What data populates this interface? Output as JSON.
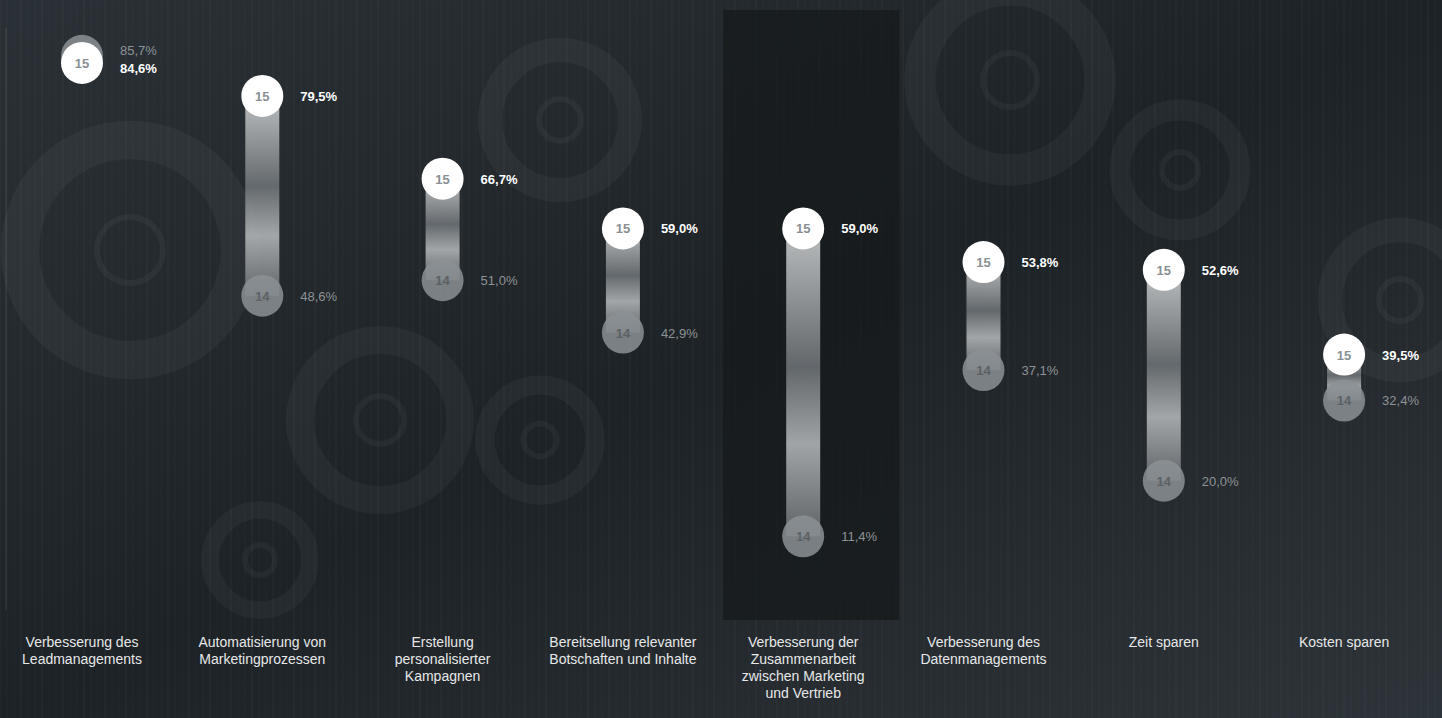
{
  "chart_data": {
    "type": "dumbbell",
    "categories": [
      "Verbesserung des Leadmanagements",
      "Automatisierung von Marketingprozessen",
      "Erstellung personalisierter Kampagnen",
      "Bereitsellung relevanter Botschaften und Inhalte",
      "Verbesserung der Zusammenarbeit zwischen Marketing und Vertrieb",
      "Verbesserung des Datenmanagements",
      "Zeit sparen",
      "Kosten sparen"
    ],
    "series": [
      {
        "name": "15",
        "color": "#ffffff",
        "values": [
          84.6,
          79.5,
          66.7,
          59.0,
          59.0,
          53.8,
          52.6,
          39.5
        ],
        "value_labels": [
          "84,6%",
          "79,5%",
          "66,7%",
          "59,0%",
          "59,0%",
          "53,8%",
          "52,6%",
          "39,5%"
        ]
      },
      {
        "name": "14",
        "color": "#8b9094",
        "values": [
          85.7,
          48.6,
          51.0,
          42.9,
          11.4,
          37.1,
          20.0,
          32.4
        ],
        "value_labels": [
          "85,7%",
          "48,6%",
          "51,0%",
          "42,9%",
          "11,4%",
          "37,1%",
          "20,0%",
          "32,4%"
        ]
      }
    ],
    "ylim": [
      0,
      90
    ],
    "tick_labels": false,
    "grid": false,
    "data_labels": true
  }
}
